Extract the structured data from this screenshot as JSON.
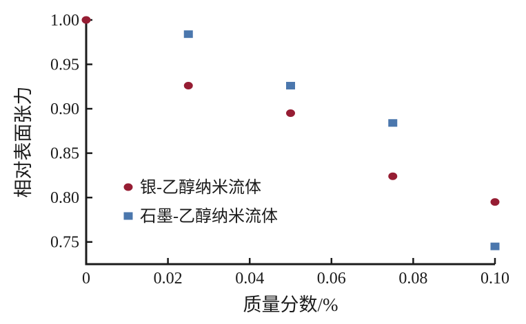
{
  "chart_data": {
    "type": "scatter",
    "title": "",
    "xlabel": "质量分数/%",
    "ylabel": "相对表面张力",
    "xlim": [
      0,
      0.1
    ],
    "ylim": [
      0.725,
      1.0
    ],
    "x_ticks": [
      0,
      0.02,
      0.04,
      0.06,
      0.08,
      0.1
    ],
    "x_tick_labels": [
      "0",
      "0.02",
      "0.04",
      "0.06",
      "0.08",
      "0.10"
    ],
    "y_ticks": [
      0.75,
      0.8,
      0.85,
      0.9,
      0.95,
      1.0
    ],
    "y_tick_labels": [
      "0.75",
      "0.80",
      "0.85",
      "0.90",
      "0.95",
      "1.00"
    ],
    "grid": false,
    "legend_position": "inside-left-middle",
    "series": [
      {
        "name": "银-乙醇纳米流体",
        "marker": "circle",
        "color": "#961d33",
        "points": [
          [
            0,
            1.0
          ],
          [
            0.025,
            0.926
          ],
          [
            0.05,
            0.895
          ],
          [
            0.075,
            0.824
          ],
          [
            0.1,
            0.795
          ]
        ]
      },
      {
        "name": "石墨-乙醇纳米流体",
        "marker": "square",
        "color": "#4b77ad",
        "points": [
          [
            0.025,
            0.984
          ],
          [
            0.05,
            0.926
          ],
          [
            0.075,
            0.884
          ],
          [
            0.1,
            0.745
          ]
        ]
      }
    ]
  },
  "colors": {
    "axis": "#1b1b1b",
    "text": "#1b1b1b",
    "background": "#ffffff"
  }
}
